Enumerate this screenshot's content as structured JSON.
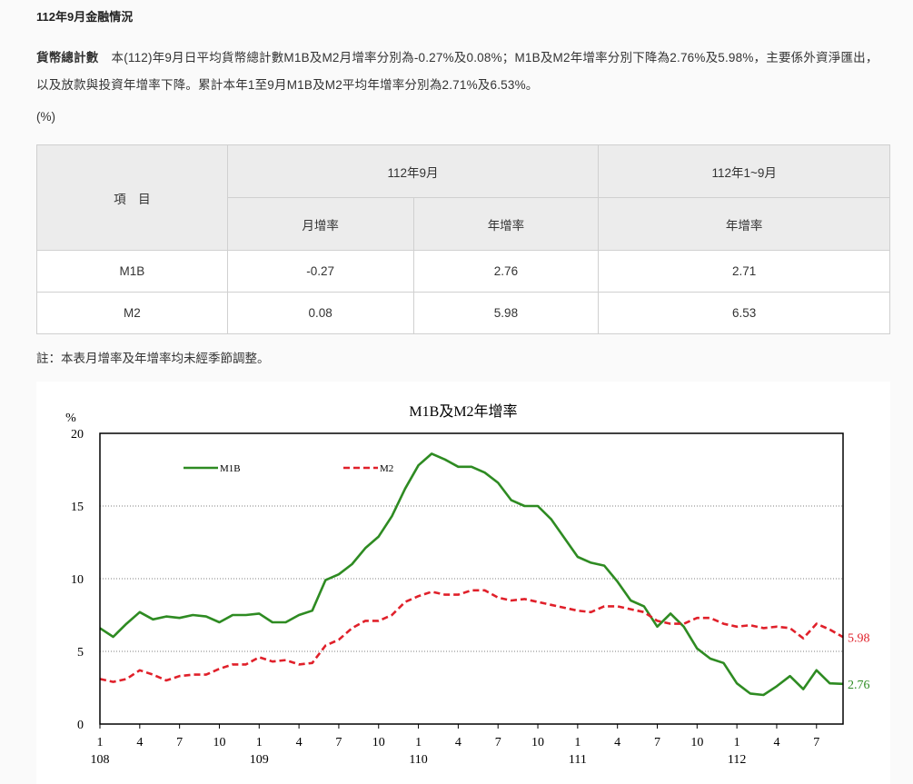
{
  "page": {
    "title": "112年9月金融情況",
    "para_lead": "貨幣總計數",
    "para_body": "本(112)年9月日平均貨幣總計數M1B及M2月增率分別為-0.27%及0.08%；M1B及M2年增率分別下降為2.76%及5.98%，主要係外資淨匯出，以及放款與投資年增率下降。累計本年1至9月M1B及M2平均年增率分別為2.71%及6.53%。",
    "unit": "(%)",
    "note": "註：本表月增率及年增率均未經季節調整。"
  },
  "table": {
    "item_header": "項　目",
    "period_headers": [
      "112年9月",
      "112年1~9月"
    ],
    "sub_headers": [
      "月增率",
      "年增率",
      "年增率"
    ],
    "rows": [
      {
        "name": "M1B",
        "values": [
          "-0.27",
          "2.76",
          "2.71"
        ]
      },
      {
        "name": "M2",
        "values": [
          "0.08",
          "5.98",
          "6.53"
        ]
      }
    ]
  },
  "chart_data": {
    "type": "line",
    "title": "M1B及M2年增率",
    "ylabel": "%",
    "ylim": [
      0,
      20
    ],
    "yticks": [
      "0",
      "5",
      "10",
      "15",
      "20"
    ],
    "grid": "horizontal dotted",
    "legend_position": "top-left",
    "x_month_labels": [
      "1",
      "4",
      "7",
      "10",
      "1",
      "4",
      "7",
      "10",
      "1",
      "4",
      "7",
      "10",
      "1",
      "4",
      "7",
      "10",
      "1",
      "4",
      "7"
    ],
    "x_year_labels": [
      "108",
      "109",
      "110",
      "111",
      "112"
    ],
    "x_start": "108-01",
    "x_end": "112-09",
    "series": [
      {
        "name": "M1B",
        "color": "#2e8b22",
        "end_label": "2.76",
        "values": [
          6.6,
          6.0,
          6.9,
          7.7,
          7.2,
          7.4,
          7.3,
          7.5,
          7.4,
          7.0,
          7.5,
          7.5,
          7.6,
          7.0,
          7.0,
          7.5,
          7.8,
          9.9,
          10.3,
          11.0,
          12.1,
          12.9,
          14.3,
          16.2,
          17.8,
          18.6,
          18.2,
          17.7,
          17.7,
          17.3,
          16.6,
          15.4,
          15.0,
          15.0,
          14.1,
          12.8,
          11.5,
          11.1,
          10.9,
          9.8,
          8.5,
          8.1,
          6.7,
          7.6,
          6.7,
          5.2,
          4.5,
          4.2,
          2.8,
          2.1,
          2.0,
          2.6,
          3.3,
          2.4,
          3.7,
          2.8,
          2.76
        ]
      },
      {
        "name": "M2",
        "color": "#e0202a",
        "end_label": "5.98",
        "values": [
          3.1,
          2.9,
          3.1,
          3.7,
          3.4,
          3.0,
          3.3,
          3.4,
          3.4,
          3.8,
          4.1,
          4.1,
          4.6,
          4.3,
          4.4,
          4.1,
          4.2,
          5.4,
          5.8,
          6.6,
          7.1,
          7.1,
          7.5,
          8.4,
          8.8,
          9.1,
          8.9,
          8.9,
          9.2,
          9.2,
          8.7,
          8.5,
          8.6,
          8.4,
          8.2,
          8.0,
          7.8,
          7.7,
          8.1,
          8.1,
          7.9,
          7.7,
          7.1,
          6.9,
          6.9,
          7.3,
          7.3,
          6.9,
          6.7,
          6.8,
          6.6,
          6.7,
          6.6,
          5.9,
          6.9,
          6.5,
          5.98
        ]
      }
    ]
  }
}
